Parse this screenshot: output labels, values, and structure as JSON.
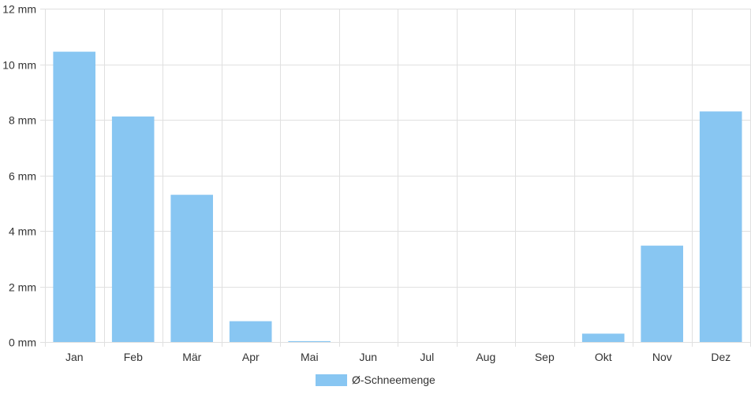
{
  "chart_data": {
    "type": "bar",
    "categories": [
      "Jan",
      "Feb",
      "Mär",
      "Apr",
      "Mai",
      "Jun",
      "Jul",
      "Aug",
      "Sep",
      "Okt",
      "Nov",
      "Dez"
    ],
    "series": [
      {
        "name": "Ø-Schneemenge",
        "values": [
          10.45,
          8.12,
          5.3,
          0.75,
          0.03,
          0,
          0,
          0,
          0,
          0.3,
          3.47,
          8.3
        ],
        "color": "#88c6f2"
      }
    ],
    "y_ticks": [
      "0 mm",
      "2 mm",
      "4 mm",
      "6 mm",
      "8 mm",
      "10 mm",
      "12 mm"
    ],
    "ylim": [
      0,
      12
    ],
    "ytick_step": 2,
    "unit": "mm",
    "grid": true,
    "legend_position": "bottom-center",
    "gridline_color": "#e0e0e0"
  }
}
